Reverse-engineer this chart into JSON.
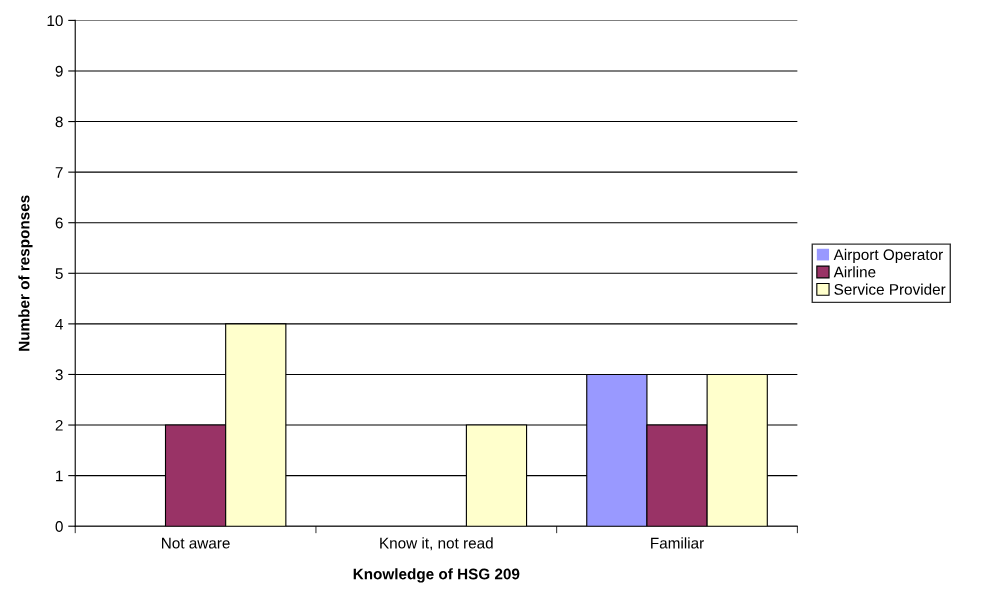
{
  "chart_data": {
    "type": "bar",
    "xlabel": "Knowledge of HSG 209",
    "ylabel": "Number of responses",
    "categories": [
      "Not aware",
      "Know it, not read",
      "Familiar"
    ],
    "series": [
      {
        "name": "Airport Operator",
        "color": "#9999ff",
        "values": [
          0,
          0,
          3
        ]
      },
      {
        "name": "Airline",
        "color": "#993366",
        "values": [
          2,
          0,
          2
        ]
      },
      {
        "name": "Service Provider",
        "color": "#ffffcc",
        "values": [
          4,
          2,
          3
        ]
      }
    ],
    "ylim": [
      0,
      10
    ],
    "yticks": [
      0,
      1,
      2,
      3,
      4,
      5,
      6,
      7,
      8,
      9,
      10
    ],
    "grid": "y",
    "legend": "right"
  }
}
